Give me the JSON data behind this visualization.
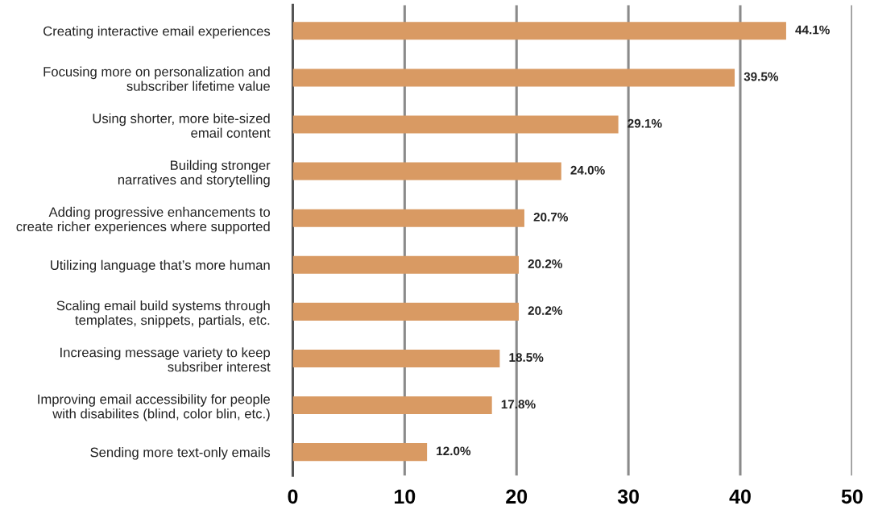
{
  "chart_data": {
    "type": "bar",
    "orientation": "horizontal",
    "categories": [
      "Creating interactive email experiences",
      "Focusing more on personalization and\nsubscriber lifetime value",
      "Using shorter, more bite-sized\nemail content",
      "Building stronger\nnarratives and storytelling",
      "Adding progressive enhancements to\ncreate richer experiences where supported",
      "Utilizing language that’s more human",
      "Scaling email build systems through\ntemplates, snippets, partials, etc.",
      "Increasing message variety to keep\nsubsriber interest",
      "Improving email accessibility for people\nwith disabilites (blind, color blin, etc.)",
      "Sending more text-only emails"
    ],
    "values": [
      44.1,
      39.5,
      29.1,
      24.0,
      20.7,
      20.2,
      20.2,
      18.5,
      17.8,
      12.0
    ],
    "value_labels": [
      "44.1%",
      "39.5%",
      "29.1%",
      "24.0%",
      "20.7%",
      "20.2%",
      "20.2%",
      "18.5%",
      "17.8%",
      "12.0%"
    ],
    "color": "#d99a63",
    "xlim": [
      0,
      50
    ],
    "xticks": [
      0,
      10,
      20,
      30,
      40,
      50
    ],
    "grid": "x"
  }
}
